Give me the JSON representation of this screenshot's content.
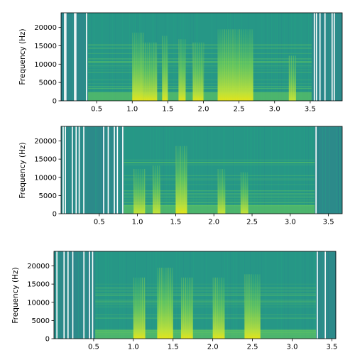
{
  "chart_data": [
    {
      "type": "heatmap",
      "title": "",
      "xlabel": "",
      "ylabel": "Frequency (Hz)",
      "xlim": [
        0.0,
        3.95
      ],
      "ylim": [
        0,
        24000
      ],
      "xticks": [
        0.5,
        1.0,
        1.5,
        2.0,
        2.5,
        3.0,
        3.5
      ],
      "xtick_labels": [
        "0.5",
        "1.0",
        "1.5",
        "2.0",
        "2.5",
        "3.0",
        "3.5"
      ],
      "yticks": [
        0,
        5000,
        10000,
        15000,
        20000
      ],
      "ytick_labels": [
        "0",
        "5000",
        "10000",
        "15000",
        "20000"
      ],
      "speech_segments": [
        [
          0.38,
          3.52
        ]
      ],
      "white_gap_times": [
        0.04,
        0.06,
        0.18,
        0.2,
        0.35,
        3.55,
        3.58,
        3.63,
        3.7,
        3.8,
        3.83
      ],
      "energy_bursts": [
        {
          "start": 1.0,
          "end": 1.15,
          "level": 0.9
        },
        {
          "start": 1.15,
          "end": 1.35,
          "level": 0.75
        },
        {
          "start": 1.42,
          "end": 1.5,
          "level": 0.85
        },
        {
          "start": 1.65,
          "end": 1.75,
          "level": 0.8
        },
        {
          "start": 1.85,
          "end": 2.0,
          "level": 0.75
        },
        {
          "start": 2.2,
          "end": 2.7,
          "level": 0.95
        },
        {
          "start": 3.2,
          "end": 3.3,
          "level": 0.55
        }
      ]
    },
    {
      "type": "heatmap",
      "title": "",
      "xlabel": "",
      "ylabel": "Frequency (Hz)",
      "xlim": [
        0.0,
        3.68
      ],
      "ylim": [
        0,
        24000
      ],
      "xticks": [
        0.5,
        1.0,
        1.5,
        2.0,
        2.5,
        3.0,
        3.5
      ],
      "xtick_labels": [
        "0.5",
        "1.0",
        "1.5",
        "2.0",
        "2.5",
        "3.0",
        "3.5"
      ],
      "yticks": [
        0,
        5000,
        10000,
        15000,
        20000
      ],
      "ytick_labels": [
        "0",
        "5000",
        "10000",
        "15000",
        "20000"
      ],
      "speech_segments": [
        [
          0.82,
          3.32
        ]
      ],
      "white_gap_times": [
        0.02,
        0.05,
        0.14,
        0.19,
        0.23,
        0.29,
        0.55,
        0.61,
        0.69,
        0.73,
        0.8,
        3.33
      ],
      "energy_bursts": [
        {
          "start": 0.95,
          "end": 1.1,
          "level": 0.55
        },
        {
          "start": 1.2,
          "end": 1.3,
          "level": 0.6
        },
        {
          "start": 1.5,
          "end": 1.65,
          "level": 0.9
        },
        {
          "start": 2.05,
          "end": 2.15,
          "level": 0.55
        },
        {
          "start": 2.35,
          "end": 2.45,
          "level": 0.5
        }
      ]
    },
    {
      "type": "heatmap",
      "title": "",
      "xlabel": "",
      "ylabel": "Frequency (Hz)",
      "xlim": [
        0.0,
        3.55
      ],
      "ylim": [
        0,
        24000
      ],
      "xticks": [
        0.5,
        1.0,
        1.5,
        2.0,
        2.5,
        3.0,
        3.5
      ],
      "xtick_labels": [
        "0.5",
        "1.0",
        "1.5",
        "2.0",
        "2.5",
        "3.0",
        "3.5"
      ],
      "yticks": [
        0,
        5000,
        10000,
        15000,
        20000
      ],
      "ytick_labels": [
        "0",
        "5000",
        "10000",
        "15000",
        "20000"
      ],
      "speech_segments": [
        [
          0.52,
          3.3
        ]
      ],
      "white_gap_times": [
        0.03,
        0.12,
        0.17,
        0.23,
        0.37,
        0.44,
        0.48,
        3.31,
        3.41
      ],
      "energy_bursts": [
        {
          "start": 1.0,
          "end": 1.15,
          "level": 0.8
        },
        {
          "start": 1.3,
          "end": 1.5,
          "level": 0.95
        },
        {
          "start": 1.6,
          "end": 1.75,
          "level": 0.8
        },
        {
          "start": 2.0,
          "end": 2.15,
          "level": 0.8
        },
        {
          "start": 2.4,
          "end": 2.6,
          "level": 0.85
        }
      ]
    }
  ]
}
